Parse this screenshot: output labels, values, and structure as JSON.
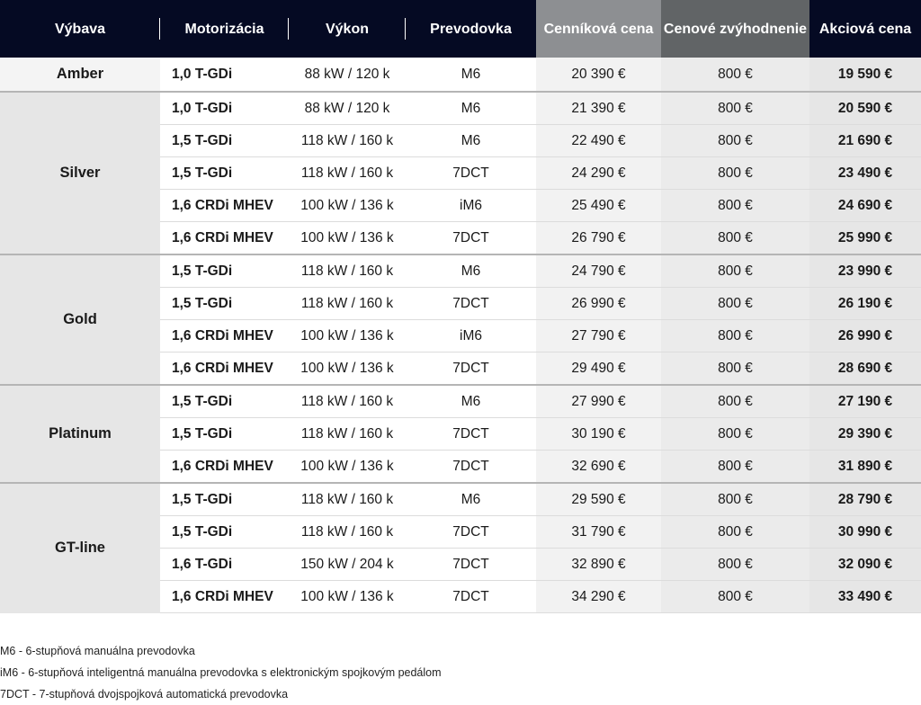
{
  "headers": [
    "Výbava",
    "Motorizácia",
    "Výkon",
    "Prevodovka",
    "Cenníková cena",
    "Cenové zvýhodnenie",
    "Akciová cena"
  ],
  "groups": [
    {
      "name": "Amber",
      "rows": [
        [
          "1,0 T-GDi",
          "88 kW / 120 k",
          "M6",
          "20 390 €",
          "800 €",
          "19 590 €"
        ]
      ]
    },
    {
      "name": "Silver",
      "rows": [
        [
          "1,0 T-GDi",
          "88 kW / 120 k",
          "M6",
          "21 390 €",
          "800 €",
          "20 590 €"
        ],
        [
          "1,5 T-GDi",
          "118 kW / 160 k",
          "M6",
          "22 490 €",
          "800 €",
          "21 690 €"
        ],
        [
          "1,5 T-GDi",
          "118 kW / 160 k",
          "7DCT",
          "24 290 €",
          "800 €",
          "23 490 €"
        ],
        [
          "1,6 CRDi MHEV",
          "100 kW / 136 k",
          "iM6",
          "25 490 €",
          "800 €",
          "24 690 €"
        ],
        [
          "1,6 CRDi MHEV",
          "100 kW / 136 k",
          "7DCT",
          "26 790 €",
          "800 €",
          "25 990 €"
        ]
      ]
    },
    {
      "name": "Gold",
      "rows": [
        [
          "1,5 T-GDi",
          "118 kW / 160 k",
          "M6",
          "24 790 €",
          "800 €",
          "23 990 €"
        ],
        [
          "1,5 T-GDi",
          "118 kW / 160 k",
          "7DCT",
          "26 990 €",
          "800 €",
          "26 190 €"
        ],
        [
          "1,6 CRDi MHEV",
          "100 kW / 136 k",
          "iM6",
          "27 790 €",
          "800 €",
          "26 990 €"
        ],
        [
          "1,6 CRDi MHEV",
          "100 kW / 136 k",
          "7DCT",
          "29 490 €",
          "800 €",
          "28 690 €"
        ]
      ]
    },
    {
      "name": "Platinum",
      "rows": [
        [
          "1,5 T-GDi",
          "118 kW / 160 k",
          "M6",
          "27 990 €",
          "800 €",
          "27 190 €"
        ],
        [
          "1,5 T-GDi",
          "118 kW / 160 k",
          "7DCT",
          "30 190 €",
          "800 €",
          "29 390 €"
        ],
        [
          "1,6 CRDi MHEV",
          "100 kW / 136 k",
          "7DCT",
          "32 690 €",
          "800 €",
          "31 890 €"
        ]
      ]
    },
    {
      "name": "GT-line",
      "rows": [
        [
          "1,5 T-GDi",
          "118 kW / 160 k",
          "M6",
          "29 590 €",
          "800 €",
          "28 790 €"
        ],
        [
          "1,5 T-GDi",
          "118 kW / 160 k",
          "7DCT",
          "31 790 €",
          "800 €",
          "30 990 €"
        ],
        [
          "1,6 T-GDi",
          "150 kW / 204 k",
          "7DCT",
          "32 890 €",
          "800 €",
          "32 090 €"
        ],
        [
          "1,6 CRDi MHEV",
          "100 kW / 136 k",
          "7DCT",
          "34 290 €",
          "800 €",
          "33 490 €"
        ]
      ]
    }
  ],
  "notes": [
    "M6 - 6-stupňová manuálna prevodovka",
    "iM6 - 6-stupňová inteligentná manuálna prevodovka s elektronickým spojkovým pedálom",
    "7DCT - 7-stupňová dvojspojková automatická prevodovka"
  ]
}
